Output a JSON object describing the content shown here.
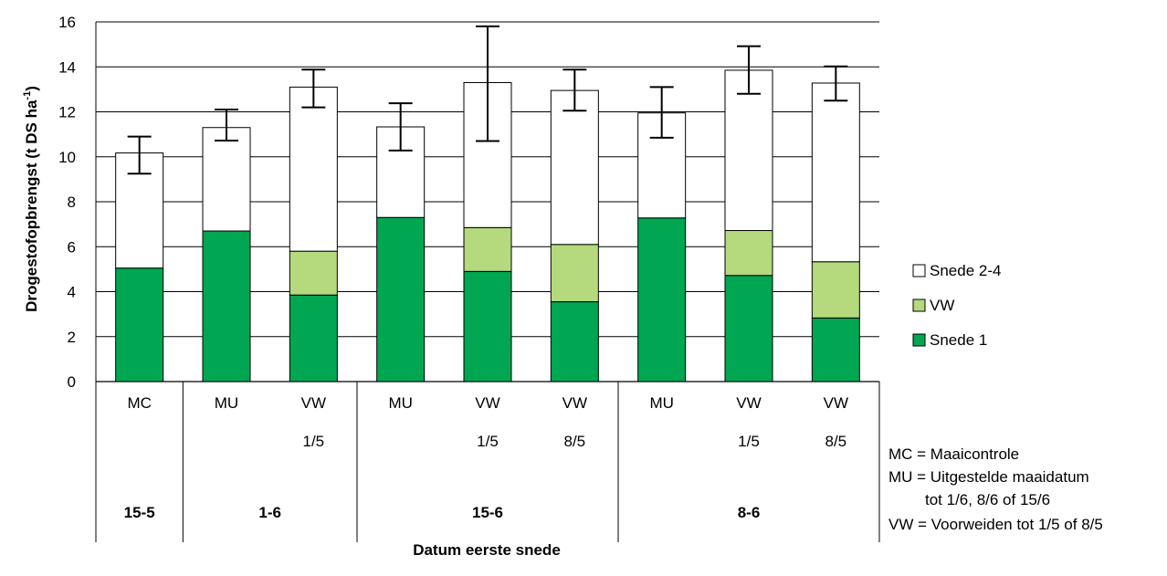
{
  "chart_data": {
    "type": "bar",
    "stacked": true,
    "ylabel": "Drogestofopbrengst (t DS ha-1)",
    "ylabel_main": "Drogestofopbrengst (t DS ha",
    "ylabel_sup": "-1",
    "ylabel_end": ")",
    "xlabel": "Datum eerste snede",
    "ylim": [
      0,
      16
    ],
    "yticks": [
      0,
      2,
      4,
      6,
      8,
      10,
      12,
      14,
      16
    ],
    "grid": true,
    "categories": [
      "MC",
      "MU",
      "VW",
      "MU",
      "VW",
      "VW",
      "MU",
      "VW",
      "VW"
    ],
    "sub_labels": [
      "",
      "",
      "1/5",
      "",
      "1/5",
      "8/5",
      "",
      "1/5",
      "8/5"
    ],
    "groups": [
      {
        "label": "15-5",
        "start": 0,
        "count": 1
      },
      {
        "label": "1-6",
        "start": 1,
        "count": 2
      },
      {
        "label": "15-6",
        "start": 3,
        "count": 3
      },
      {
        "label": "8-6",
        "start": 6,
        "count": 3
      }
    ],
    "series": [
      {
        "name": "Snede 1",
        "color": "#00a651",
        "values": [
          5.05,
          6.7,
          3.85,
          7.3,
          4.9,
          3.55,
          7.28,
          4.72,
          2.83
        ]
      },
      {
        "name": "VW",
        "color": "#b5d97d",
        "values": [
          0,
          0,
          1.95,
          0,
          1.95,
          2.55,
          0,
          2.0,
          2.5
        ]
      },
      {
        "name": "Snede 2-4",
        "color": "#ffffff",
        "values": [
          5.12,
          4.6,
          7.3,
          4.03,
          6.45,
          6.85,
          4.67,
          7.13,
          7.95
        ]
      }
    ],
    "totals": [
      10.17,
      11.3,
      13.1,
      11.33,
      13.3,
      12.95,
      11.95,
      13.85,
      13.28
    ],
    "error_bars": [
      {
        "low": 9.25,
        "high": 10.9
      },
      {
        "low": 10.72,
        "high": 12.1
      },
      {
        "low": 12.2,
        "high": 13.88
      },
      {
        "low": 10.28,
        "high": 12.38
      },
      {
        "low": 10.7,
        "high": 15.8
      },
      {
        "low": 12.05,
        "high": 13.88
      },
      {
        "low": 10.85,
        "high": 13.1
      },
      {
        "low": 12.8,
        "high": 14.92
      },
      {
        "low": 12.5,
        "high": 14.02
      }
    ],
    "legend": [
      {
        "label": "Snede 2-4",
        "color": "#ffffff"
      },
      {
        "label": "VW",
        "color": "#b5d97d"
      },
      {
        "label": "Snede 1",
        "color": "#00a651"
      }
    ],
    "legend_placement": "right",
    "notes": [
      "MC = Maaicontrole",
      "MU = Uitgestelde maaidatum",
      "tot 1/6, 8/6 of 15/6",
      "VW = Voorweiden tot 1/5 of 8/5"
    ]
  }
}
